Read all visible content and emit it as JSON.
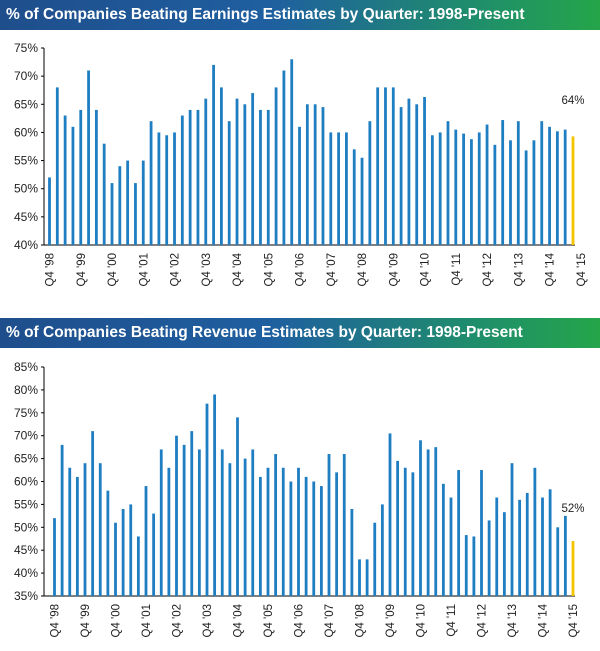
{
  "chart_data": [
    {
      "type": "bar",
      "title": "% of Companies Beating Earnings Estimates by Quarter: 1998-Present",
      "ylim": [
        40,
        75
      ],
      "yticks": [
        "40%",
        "45%",
        "50%",
        "55%",
        "60%",
        "65%",
        "70%",
        "75%"
      ],
      "grid": false,
      "x_labels": [
        "Q4 '98",
        "Q4 '99",
        "Q4 '00",
        "Q4 '01",
        "Q4 '02",
        "Q4 '03",
        "Q4 '04",
        "Q4 '05",
        "Q4 '06",
        "Q4 '07",
        "Q4 '08",
        "Q4 '09",
        "Q4 '10",
        "Q4 '11",
        "Q4 '12",
        "Q4 '13",
        "Q4 '14",
        "Q4 '15"
      ],
      "values": [
        52,
        68,
        63,
        61,
        64,
        71,
        64,
        58,
        51,
        54,
        55,
        51,
        55,
        62,
        60,
        59.5,
        60,
        63,
        64,
        64,
        66,
        72,
        68,
        62,
        66,
        65,
        67,
        64,
        64,
        68,
        71,
        73,
        61,
        65,
        65,
        64.5,
        60,
        60,
        60,
        57,
        55.5,
        62,
        68,
        68,
        68,
        64.5,
        66,
        65,
        66.3,
        59.5,
        60,
        62,
        60.5,
        59.8,
        58.8,
        60,
        61.4,
        57.8,
        62.2,
        58.6,
        62,
        56.8,
        58.6,
        62,
        61,
        60.2,
        60.5,
        59.3
      ],
      "highlight": {
        "value": 64,
        "label": "64%"
      },
      "colors": {
        "bar": "#1f7ec2",
        "highlight": "#f5c400"
      }
    },
    {
      "type": "bar",
      "title": "% of Companies Beating Revenue Estimates by Quarter: 1998-Present",
      "ylim": [
        35,
        85
      ],
      "yticks": [
        "35%",
        "40%",
        "45%",
        "50%",
        "55%",
        "60%",
        "65%",
        "70%",
        "75%",
        "80%",
        "85%"
      ],
      "grid": false,
      "x_labels": [
        "Q4 '98",
        "Q4 '99",
        "Q4 '00",
        "Q4 '01",
        "Q4 '02",
        "Q4 '03",
        "Q4 '04",
        "Q4 '05",
        "Q4 '06",
        "Q4 '07",
        "Q4 '08",
        "Q4 '09",
        "Q4 '10",
        "Q4 '11",
        "Q4 '12",
        "Q4 '13",
        "Q4 '14",
        "Q4 '15"
      ],
      "values": [
        52,
        68,
        63,
        61,
        64,
        71,
        64,
        58,
        51,
        54,
        55,
        48,
        59,
        53,
        67,
        63,
        70,
        68,
        71,
        67,
        77,
        79,
        67,
        64,
        74,
        65,
        67,
        61,
        63,
        66,
        63,
        60,
        63,
        61,
        60,
        59,
        66,
        62,
        66,
        54,
        43,
        43,
        51,
        55,
        70.5,
        64.5,
        63,
        62,
        69,
        67,
        67.5,
        59.5,
        56.5,
        62.5,
        48.3,
        48,
        62.5,
        51.5,
        56.5,
        53.3,
        64,
        56,
        57.5,
        63,
        56.5,
        58.3,
        50,
        52.5,
        47
      ],
      "highlight": {
        "value": 52,
        "label": "52%"
      },
      "colors": {
        "bar": "#1f7ec2",
        "highlight": "#f5c400"
      }
    }
  ]
}
